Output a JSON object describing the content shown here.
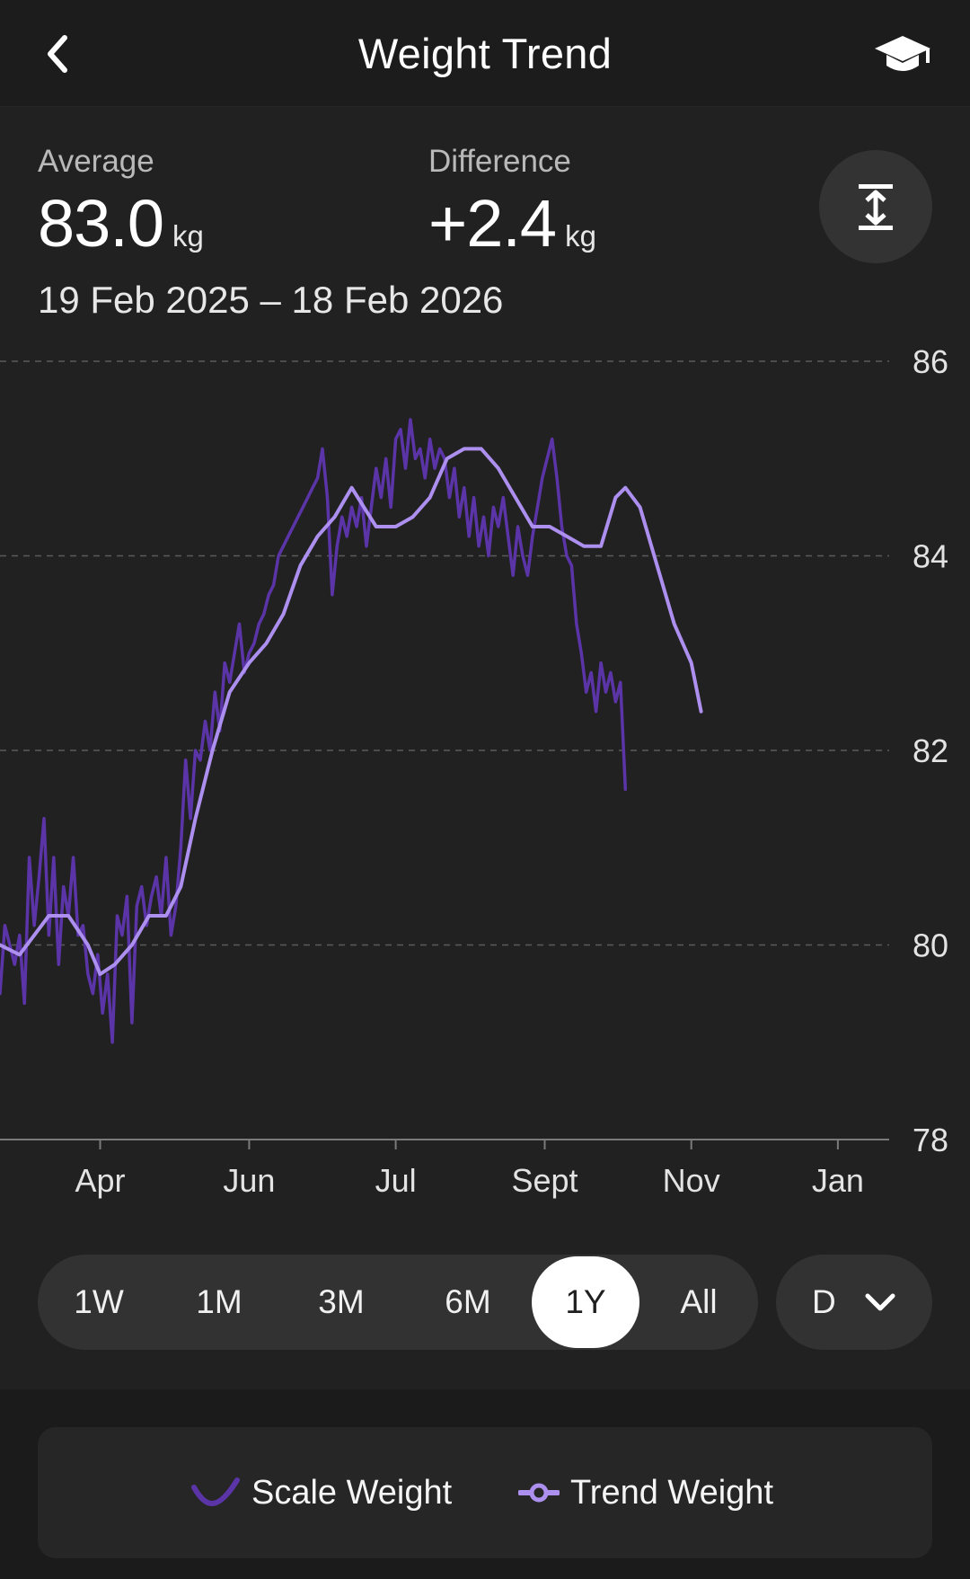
{
  "header": {
    "title": "Weight Trend",
    "back_icon": "chevron-left-icon",
    "learn_icon": "graduation-cap-icon"
  },
  "stats": {
    "average": {
      "label": "Average",
      "value": "83.0",
      "unit": "kg"
    },
    "difference": {
      "label": "Difference",
      "value": "+2.4",
      "unit": "kg"
    },
    "date_range": "19 Feb 2025 – 18 Feb 2026"
  },
  "expand_icon": "vertical-expand-icon",
  "range_selector": {
    "options": [
      "1W",
      "1M",
      "3M",
      "6M",
      "1Y",
      "All"
    ],
    "selected": "1Y"
  },
  "granularity": {
    "value": "D",
    "icon": "chevron-down-icon"
  },
  "legend": {
    "scale": "Scale Weight",
    "trend": "Trend Weight"
  },
  "colors": {
    "scale": "#5b35a8",
    "trend": "#ad8ff0",
    "grid": "#5a5a5a",
    "background": "#212121"
  },
  "chart_data": {
    "type": "line",
    "x_start": "2025-02-19",
    "x_end": "2026-02-18",
    "x_ticks": [
      {
        "label": "Apr",
        "date": "2025-04-01"
      },
      {
        "label": "Jun",
        "date": "2025-06-01"
      },
      {
        "label": "Jul",
        "date": "2025-07-31"
      },
      {
        "label": "Sept",
        "date": "2025-09-30"
      },
      {
        "label": "Nov",
        "date": "2025-11-29"
      },
      {
        "label": "Jan",
        "date": "2026-01-28"
      }
    ],
    "y_ticks": [
      78,
      80,
      82,
      84,
      86
    ],
    "ylim": [
      78,
      86
    ],
    "grid": true,
    "series": [
      {
        "name": "Scale Weight",
        "color": "#5b35a8",
        "points": [
          [
            "2025-02-19",
            79.5
          ],
          [
            "2025-02-21",
            80.2
          ],
          [
            "2025-02-23",
            80.0
          ],
          [
            "2025-02-25",
            79.8
          ],
          [
            "2025-02-27",
            80.1
          ],
          [
            "2025-03-01",
            79.4
          ],
          [
            "2025-03-03",
            80.9
          ],
          [
            "2025-03-05",
            80.2
          ],
          [
            "2025-03-07",
            80.7
          ],
          [
            "2025-03-09",
            81.3
          ],
          [
            "2025-03-11",
            80.1
          ],
          [
            "2025-03-13",
            80.9
          ],
          [
            "2025-03-15",
            79.8
          ],
          [
            "2025-03-17",
            80.6
          ],
          [
            "2025-03-19",
            80.3
          ],
          [
            "2025-03-21",
            80.9
          ],
          [
            "2025-03-23",
            80.1
          ],
          [
            "2025-03-25",
            80.2
          ],
          [
            "2025-03-27",
            79.7
          ],
          [
            "2025-03-29",
            79.5
          ],
          [
            "2025-03-31",
            79.9
          ],
          [
            "2025-04-02",
            79.3
          ],
          [
            "2025-04-04",
            79.7
          ],
          [
            "2025-04-06",
            79.0
          ],
          [
            "2025-04-08",
            80.3
          ],
          [
            "2025-04-10",
            80.1
          ],
          [
            "2025-04-12",
            80.5
          ],
          [
            "2025-04-14",
            79.2
          ],
          [
            "2025-04-16",
            80.4
          ],
          [
            "2025-04-18",
            80.6
          ],
          [
            "2025-04-20",
            80.2
          ],
          [
            "2025-04-22",
            80.5
          ],
          [
            "2025-04-24",
            80.7
          ],
          [
            "2025-04-26",
            80.3
          ],
          [
            "2025-04-28",
            80.9
          ],
          [
            "2025-04-30",
            80.1
          ],
          [
            "2025-05-02",
            80.4
          ],
          [
            "2025-05-04",
            81.0
          ],
          [
            "2025-05-06",
            81.9
          ],
          [
            "2025-05-08",
            81.3
          ],
          [
            "2025-05-10",
            82.0
          ],
          [
            "2025-05-12",
            81.9
          ],
          [
            "2025-05-14",
            82.3
          ],
          [
            "2025-05-16",
            82.0
          ],
          [
            "2025-05-18",
            82.6
          ],
          [
            "2025-05-20",
            82.2
          ],
          [
            "2025-05-22",
            82.9
          ],
          [
            "2025-05-24",
            82.7
          ],
          [
            "2025-05-26",
            83.0
          ],
          [
            "2025-05-28",
            83.3
          ],
          [
            "2025-05-30",
            82.8
          ],
          [
            "2025-06-01",
            83.0
          ],
          [
            "2025-06-03",
            83.1
          ],
          [
            "2025-06-05",
            83.3
          ],
          [
            "2025-06-07",
            83.4
          ],
          [
            "2025-06-09",
            83.6
          ],
          [
            "2025-06-11",
            83.7
          ],
          [
            "2025-06-13",
            84.0
          ],
          [
            "2025-06-15",
            84.1
          ],
          [
            "2025-06-17",
            84.2
          ],
          [
            "2025-06-19",
            84.3
          ],
          [
            "2025-06-21",
            84.4
          ],
          [
            "2025-06-23",
            84.5
          ],
          [
            "2025-06-25",
            84.6
          ],
          [
            "2025-06-27",
            84.7
          ],
          [
            "2025-06-29",
            84.8
          ],
          [
            "2025-07-01",
            85.1
          ],
          [
            "2025-07-03",
            84.6
          ],
          [
            "2025-07-05",
            83.6
          ],
          [
            "2025-07-07",
            84.1
          ],
          [
            "2025-07-09",
            84.4
          ],
          [
            "2025-07-11",
            84.2
          ],
          [
            "2025-07-13",
            84.5
          ],
          [
            "2025-07-15",
            84.3
          ],
          [
            "2025-07-17",
            84.6
          ],
          [
            "2025-07-19",
            84.1
          ],
          [
            "2025-07-21",
            84.5
          ],
          [
            "2025-07-23",
            84.9
          ],
          [
            "2025-07-25",
            84.6
          ],
          [
            "2025-07-27",
            85.0
          ],
          [
            "2025-07-29",
            84.5
          ],
          [
            "2025-07-31",
            85.2
          ],
          [
            "2025-08-02",
            85.3
          ],
          [
            "2025-08-04",
            84.9
          ],
          [
            "2025-08-06",
            85.4
          ],
          [
            "2025-08-08",
            85.0
          ],
          [
            "2025-08-10",
            85.1
          ],
          [
            "2025-08-12",
            84.8
          ],
          [
            "2025-08-14",
            85.2
          ],
          [
            "2025-08-16",
            84.9
          ],
          [
            "2025-08-18",
            85.1
          ],
          [
            "2025-08-20",
            85.0
          ],
          [
            "2025-08-22",
            84.6
          ],
          [
            "2025-08-24",
            84.9
          ],
          [
            "2025-08-26",
            84.4
          ],
          [
            "2025-08-28",
            84.7
          ],
          [
            "2025-08-30",
            84.2
          ],
          [
            "2025-09-01",
            84.6
          ],
          [
            "2025-09-03",
            84.1
          ],
          [
            "2025-09-05",
            84.4
          ],
          [
            "2025-09-07",
            84.0
          ],
          [
            "2025-09-09",
            84.5
          ],
          [
            "2025-09-11",
            84.3
          ],
          [
            "2025-09-13",
            84.6
          ],
          [
            "2025-09-15",
            84.2
          ],
          [
            "2025-09-17",
            83.8
          ],
          [
            "2025-09-19",
            84.3
          ],
          [
            "2025-09-21",
            84.0
          ],
          [
            "2025-09-23",
            83.8
          ],
          [
            "2025-09-25",
            84.2
          ],
          [
            "2025-09-27",
            84.5
          ],
          [
            "2025-09-29",
            84.8
          ],
          [
            "2025-10-01",
            85.0
          ],
          [
            "2025-10-03",
            85.2
          ],
          [
            "2025-10-05",
            84.8
          ],
          [
            "2025-10-07",
            84.3
          ],
          [
            "2025-10-09",
            84.0
          ],
          [
            "2025-10-11",
            83.9
          ],
          [
            "2025-10-13",
            83.3
          ],
          [
            "2025-10-15",
            83.0
          ],
          [
            "2025-10-17",
            82.6
          ],
          [
            "2025-10-19",
            82.8
          ],
          [
            "2025-10-21",
            82.4
          ],
          [
            "2025-10-23",
            82.9
          ],
          [
            "2025-10-25",
            82.6
          ],
          [
            "2025-10-27",
            82.8
          ],
          [
            "2025-10-29",
            82.5
          ],
          [
            "2025-10-31",
            82.7
          ],
          [
            "2025-11-02",
            81.6
          ]
        ]
      },
      {
        "name": "Trend Weight",
        "color": "#ad8ff0",
        "points": [
          [
            "2025-02-19",
            80.0
          ],
          [
            "2025-02-27",
            79.9
          ],
          [
            "2025-03-05",
            80.1
          ],
          [
            "2025-03-11",
            80.3
          ],
          [
            "2025-03-19",
            80.3
          ],
          [
            "2025-03-27",
            80.0
          ],
          [
            "2025-04-01",
            79.7
          ],
          [
            "2025-04-07",
            79.8
          ],
          [
            "2025-04-14",
            80.0
          ],
          [
            "2025-04-21",
            80.3
          ],
          [
            "2025-04-28",
            80.3
          ],
          [
            "2025-05-04",
            80.6
          ],
          [
            "2025-05-10",
            81.3
          ],
          [
            "2025-05-17",
            82.0
          ],
          [
            "2025-05-24",
            82.6
          ],
          [
            "2025-06-01",
            82.9
          ],
          [
            "2025-06-08",
            83.1
          ],
          [
            "2025-06-15",
            83.4
          ],
          [
            "2025-06-22",
            83.9
          ],
          [
            "2025-06-29",
            84.2
          ],
          [
            "2025-07-06",
            84.4
          ],
          [
            "2025-07-13",
            84.7
          ],
          [
            "2025-07-18",
            84.5
          ],
          [
            "2025-07-23",
            84.3
          ],
          [
            "2025-07-31",
            84.3
          ],
          [
            "2025-08-07",
            84.4
          ],
          [
            "2025-08-14",
            84.6
          ],
          [
            "2025-08-21",
            85.0
          ],
          [
            "2025-08-28",
            85.1
          ],
          [
            "2025-09-04",
            85.1
          ],
          [
            "2025-09-11",
            84.9
          ],
          [
            "2025-09-18",
            84.6
          ],
          [
            "2025-09-25",
            84.3
          ],
          [
            "2025-10-02",
            84.3
          ],
          [
            "2025-10-09",
            84.2
          ],
          [
            "2025-10-16",
            84.1
          ],
          [
            "2025-10-23",
            84.1
          ],
          [
            "2025-10-29",
            84.6
          ],
          [
            "2025-11-02",
            84.7
          ],
          [
            "2025-11-08",
            84.5
          ],
          [
            "2025-11-15",
            83.9
          ],
          [
            "2025-11-22",
            83.3
          ],
          [
            "2025-11-29",
            82.9
          ],
          [
            "2025-12-03",
            82.4
          ]
        ]
      }
    ]
  }
}
